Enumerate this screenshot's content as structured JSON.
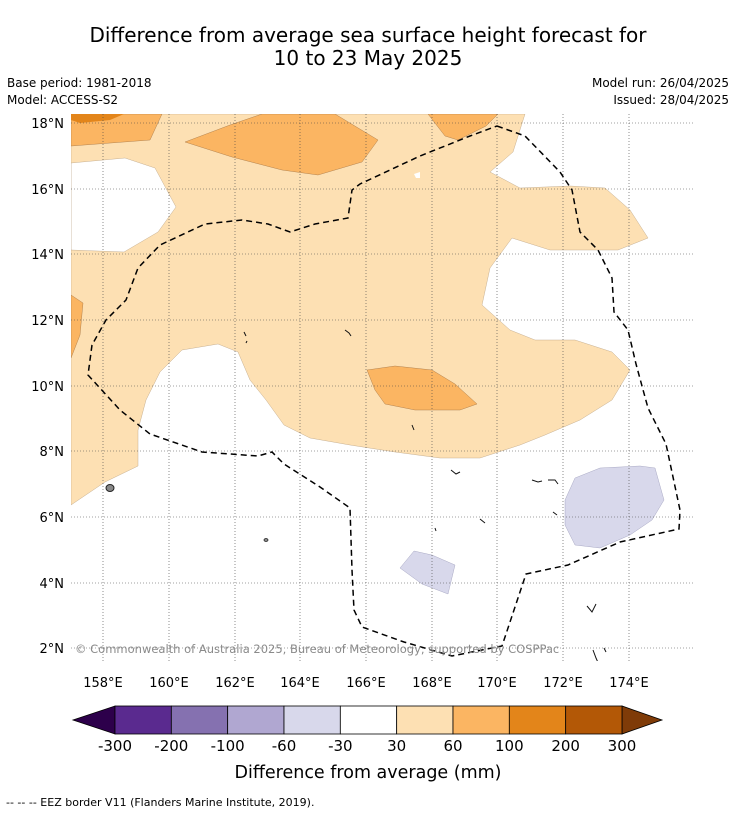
{
  "title": {
    "line1": "Difference from average sea surface height forecast for",
    "line2": "10 to 23 May 2025"
  },
  "meta": {
    "base_period": "Base period: 1981-2018",
    "model": "Model: ACCESS-S2",
    "model_run": "Model run: 26/04/2025",
    "issued": "Issued: 28/04/2025"
  },
  "map": {
    "lat_labels": [
      "18°N",
      "16°N",
      "14°N",
      "12°N",
      "10°N",
      "8°N",
      "6°N",
      "4°N",
      "2°N"
    ],
    "lon_labels": [
      "158°E",
      "160°E",
      "162°E",
      "164°E",
      "166°E",
      "168°E",
      "170°E",
      "172°E",
      "174°E"
    ],
    "copyright": "© Commonwealth of Australia 2025, Bureau of Meteorology, supported by COSPPac"
  },
  "colorbar": {
    "tick_labels": [
      "-300",
      "-200",
      "-100",
      "-60",
      "-30",
      "30",
      "60",
      "100",
      "200",
      "300"
    ],
    "colors": [
      "#5a2a8f",
      "#8571b0",
      "#b0a7d1",
      "#d8d8eb",
      "#ffffff",
      "#fde0b3",
      "#fbb562",
      "#e3851a",
      "#b35806"
    ],
    "under_color": "#2d004b",
    "over_color": "#7f3b08",
    "label": "Difference from average (mm)"
  },
  "legend": {
    "eez": "--  --  -- EEZ border V11 (Flanders Marine Institute, 2019)."
  }
}
